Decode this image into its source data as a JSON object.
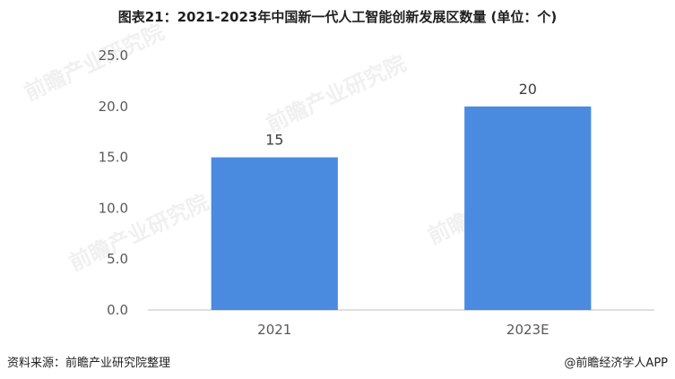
{
  "chart_data": {
    "type": "bar",
    "title": "图表21：2021-2023年中国新一代人工智能创新发展区数量 (单位：个)",
    "categories": [
      "2021",
      "2023E"
    ],
    "values": [
      15,
      20
    ],
    "ylim": [
      0,
      25
    ],
    "yticks": [
      "0.0",
      "5.0",
      "10.0",
      "15.0",
      "20.0",
      "25.0"
    ],
    "xlabel": "",
    "ylabel": "",
    "grid": false,
    "bar_color": "#4a8be0",
    "data_labels": [
      "15",
      "20"
    ]
  },
  "watermark_text": "前瞻产业研究院",
  "source": "资料来源：前瞻产业研究院整理",
  "credit": "@前瞻经济学人APP"
}
